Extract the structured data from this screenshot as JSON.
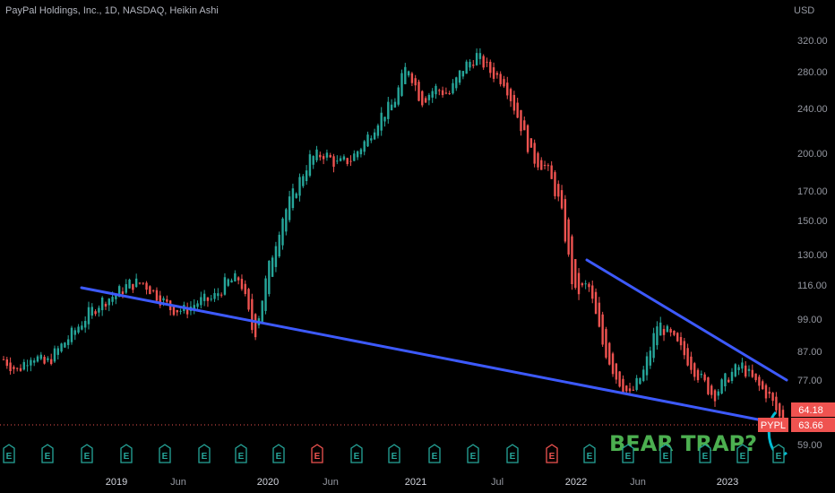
{
  "title": "PayPal Holdings, Inc., 1D, NASDAQ, Heikin Ashi",
  "currency": "USD",
  "colors": {
    "background": "#000000",
    "up": "#26a69a",
    "down": "#ef5350",
    "trendline": "#3d5afe",
    "annotation": "#4caf50",
    "circle": "#00bcd4",
    "earnings_up": "#26a69a",
    "earnings_down": "#ef5350"
  },
  "chart_data": {
    "type": "candlestick",
    "ylim": [
      56,
      340
    ],
    "y_scale": "log",
    "y_ticks": [
      "320.00",
      "280.00",
      "240.00",
      "200.00",
      "170.00",
      "150.00",
      "130.00",
      "116.00",
      "99.00",
      "87.00",
      "77.00",
      "59.00"
    ],
    "x_ticks": [
      {
        "label": "2019",
        "year": true
      },
      {
        "label": "Jun",
        "year": false
      },
      {
        "label": "2020",
        "year": true
      },
      {
        "label": "Jun",
        "year": false
      },
      {
        "label": "2021",
        "year": true
      },
      {
        "label": "Jul",
        "year": false
      },
      {
        "label": "2022",
        "year": true
      },
      {
        "label": "Jun",
        "year": false
      },
      {
        "label": "2023",
        "year": true
      }
    ],
    "series": [
      {
        "date": "2018-09",
        "value": 84
      },
      {
        "date": "2018-10",
        "value": 80
      },
      {
        "date": "2018-11",
        "value": 86
      },
      {
        "date": "2018-12",
        "value": 82
      },
      {
        "date": "2019-01",
        "value": 88
      },
      {
        "date": "2019-02",
        "value": 94
      },
      {
        "date": "2019-03",
        "value": 101
      },
      {
        "date": "2019-04",
        "value": 107
      },
      {
        "date": "2019-05",
        "value": 110
      },
      {
        "date": "2019-06",
        "value": 115
      },
      {
        "date": "2019-07",
        "value": 116
      },
      {
        "date": "2019-08",
        "value": 110
      },
      {
        "date": "2019-09",
        "value": 104
      },
      {
        "date": "2019-10",
        "value": 103
      },
      {
        "date": "2019-11",
        "value": 107
      },
      {
        "date": "2019-12",
        "value": 108
      },
      {
        "date": "2020-01",
        "value": 116
      },
      {
        "date": "2020-02",
        "value": 118
      },
      {
        "date": "2020-03",
        "value": 92
      },
      {
        "date": "2020-04",
        "value": 122
      },
      {
        "date": "2020-05",
        "value": 152
      },
      {
        "date": "2020-06",
        "value": 172
      },
      {
        "date": "2020-07",
        "value": 195
      },
      {
        "date": "2020-08",
        "value": 199
      },
      {
        "date": "2020-09",
        "value": 190
      },
      {
        "date": "2020-10",
        "value": 195
      },
      {
        "date": "2020-11",
        "value": 210
      },
      {
        "date": "2020-12",
        "value": 232
      },
      {
        "date": "2021-01",
        "value": 245
      },
      {
        "date": "2021-02",
        "value": 290
      },
      {
        "date": "2021-03",
        "value": 248
      },
      {
        "date": "2021-04",
        "value": 262
      },
      {
        "date": "2021-05",
        "value": 255
      },
      {
        "date": "2021-06",
        "value": 285
      },
      {
        "date": "2021-07",
        "value": 300
      },
      {
        "date": "2021-08",
        "value": 280
      },
      {
        "date": "2021-09",
        "value": 270
      },
      {
        "date": "2021-10",
        "value": 230
      },
      {
        "date": "2021-11",
        "value": 195
      },
      {
        "date": "2021-12",
        "value": 188
      },
      {
        "date": "2022-01",
        "value": 160
      },
      {
        "date": "2022-02",
        "value": 110
      },
      {
        "date": "2022-03",
        "value": 115
      },
      {
        "date": "2022-04",
        "value": 90
      },
      {
        "date": "2022-05",
        "value": 78
      },
      {
        "date": "2022-06",
        "value": 72
      },
      {
        "date": "2022-07",
        "value": 80
      },
      {
        "date": "2022-08",
        "value": 98
      },
      {
        "date": "2022-09",
        "value": 92
      },
      {
        "date": "2022-10",
        "value": 85
      },
      {
        "date": "2022-11",
        "value": 78
      },
      {
        "date": "2022-12",
        "value": 72
      },
      {
        "date": "2023-01",
        "value": 78
      },
      {
        "date": "2023-02",
        "value": 82
      },
      {
        "date": "2023-03",
        "value": 76
      },
      {
        "date": "2023-04",
        "value": 72
      },
      {
        "date": "2023-05",
        "value": 64
      }
    ],
    "price_labels": [
      {
        "label": "64.18",
        "color": "#ef5350"
      },
      {
        "label": "PYPL",
        "color": "#ef5350"
      },
      {
        "label": "63.66",
        "color": "#ef5350"
      }
    ],
    "annotation": "BEAR TRAP?"
  },
  "earnings_markers": [
    {
      "label": "E",
      "kind": "up"
    },
    {
      "label": "E",
      "kind": "up"
    },
    {
      "label": "E",
      "kind": "up"
    },
    {
      "label": "E",
      "kind": "up"
    },
    {
      "label": "E",
      "kind": "up"
    },
    {
      "label": "E",
      "kind": "up"
    },
    {
      "label": "E",
      "kind": "up"
    },
    {
      "label": "E",
      "kind": "up"
    },
    {
      "label": "E",
      "kind": "up"
    },
    {
      "label": "E",
      "kind": "up"
    },
    {
      "label": "E",
      "kind": "up"
    },
    {
      "label": "E",
      "kind": "down"
    },
    {
      "label": "E",
      "kind": "up"
    },
    {
      "label": "E",
      "kind": "up"
    },
    {
      "label": "E",
      "kind": "up"
    },
    {
      "label": "E",
      "kind": "up"
    },
    {
      "label": "E",
      "kind": "up"
    },
    {
      "label": "E",
      "kind": "up"
    },
    {
      "label": "E",
      "kind": "down"
    },
    {
      "label": "E",
      "kind": "up"
    },
    {
      "label": "E",
      "kind": "up"
    },
    {
      "label": "E",
      "kind": "up"
    },
    {
      "label": "E",
      "kind": "up"
    },
    {
      "label": "E",
      "kind": "up"
    },
    {
      "label": "E",
      "kind": "up"
    },
    {
      "label": "E",
      "kind": "up"
    }
  ]
}
